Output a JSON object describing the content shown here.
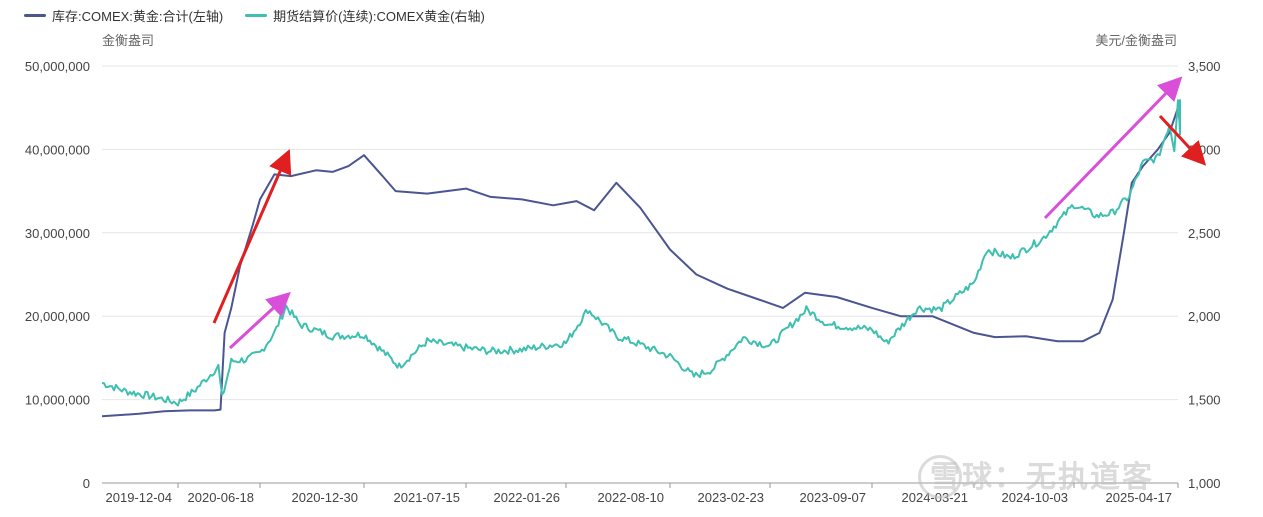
{
  "chart_data": {
    "type": "line",
    "legend": [
      {
        "name": "库存:COMEX:黄金:合计(左轴)",
        "color": "#4b5592"
      },
      {
        "name": "期货结算价(连续):COMEX黄金(右轴)",
        "color": "#3fbfb0"
      }
    ],
    "left_axis": {
      "unit": "金衡盎司",
      "ylim": [
        0,
        50000000
      ],
      "ticks": [
        "0",
        "10,000,000",
        "20,000,000",
        "30,000,000",
        "40,000,000",
        "50,000,000"
      ]
    },
    "right_axis": {
      "unit": "美元/金衡盎司",
      "ylim": [
        1000,
        3500
      ],
      "ticks": [
        "1,000",
        "1,500",
        "2,000",
        "2,500",
        "3,000",
        "3,500"
      ]
    },
    "x_ticks": [
      "2019-12-04",
      "2020-06-18",
      "2020-12-30",
      "2021-07-15",
      "2022-01-26",
      "2022-08-10",
      "2023-02-23",
      "2023-09-07",
      "2024-03-21",
      "2024-10-03",
      "2025-04-17"
    ],
    "grid": true,
    "series": [
      {
        "name": "库存:COMEX:黄金:合计(左轴)",
        "axis": "left",
        "x": [
          "2019-06-01",
          "2019-09-01",
          "2019-11-01",
          "2020-01-01",
          "2020-03-01",
          "2020-03-15",
          "2020-03-25",
          "2020-04-10",
          "2020-05-01",
          "2020-06-01",
          "2020-06-18",
          "2020-07-15",
          "2020-08-15",
          "2020-10-01",
          "2020-11-01",
          "2020-12-01",
          "2020-12-30",
          "2021-02-01",
          "2021-03-01",
          "2021-05-01",
          "2021-07-15",
          "2021-09-01",
          "2021-11-01",
          "2022-01-01",
          "2022-02-15",
          "2022-03-20",
          "2022-05-01",
          "2022-06-15",
          "2022-08-10",
          "2022-10-01",
          "2022-12-01",
          "2023-02-01",
          "2023-03-20",
          "2023-05-01",
          "2023-07-01",
          "2023-09-07",
          "2023-11-01",
          "2024-01-01",
          "2024-03-21",
          "2024-05-01",
          "2024-07-01",
          "2024-09-01",
          "2024-10-20",
          "2024-11-20",
          "2024-12-15",
          "2025-01-05",
          "2025-01-20",
          "2025-02-10",
          "2025-03-10",
          "2025-04-01",
          "2025-04-17",
          "2025-04-25"
        ],
        "values": [
          8000000,
          8300000,
          8600000,
          8700000,
          8700000,
          8800000,
          18000000,
          21000000,
          26000000,
          31000000,
          34000000,
          37000000,
          36800000,
          37500000,
          37300000,
          38000000,
          39300000,
          37000000,
          35000000,
          34700000,
          35300000,
          34300000,
          34000000,
          33300000,
          33800000,
          32700000,
          36000000,
          33000000,
          28000000,
          25000000,
          23300000,
          22000000,
          21000000,
          22800000,
          22300000,
          21000000,
          20000000,
          20000000,
          18000000,
          17500000,
          17600000,
          17000000,
          17000000,
          18000000,
          22000000,
          30000000,
          36000000,
          38000000,
          40000000,
          42000000,
          45000000,
          43000000
        ]
      },
      {
        "name": "期货结算价(连续):COMEX黄金(右轴)",
        "axis": "right",
        "x": [
          "2019-06-01",
          "2019-08-01",
          "2019-10-01",
          "2019-12-04",
          "2020-01-15",
          "2020-02-20",
          "2020-03-10",
          "2020-03-19",
          "2020-04-10",
          "2020-05-15",
          "2020-06-18",
          "2020-07-15",
          "2020-08-06",
          "2020-09-01",
          "2020-11-01",
          "2020-12-30",
          "2021-03-08",
          "2021-05-01",
          "2021-07-15",
          "2021-09-01",
          "2021-11-01",
          "2022-01-26",
          "2022-03-08",
          "2022-05-01",
          "2022-06-15",
          "2022-08-10",
          "2022-09-26",
          "2022-11-01",
          "2023-01-01",
          "2023-02-23",
          "2023-05-04",
          "2023-06-15",
          "2023-09-07",
          "2023-10-05",
          "2023-12-04",
          "2024-01-15",
          "2024-03-21",
          "2024-04-15",
          "2024-06-01",
          "2024-08-01",
          "2024-10-03",
          "2024-11-15",
          "2024-12-15",
          "2025-01-15",
          "2025-02-10",
          "2025-03-10",
          "2025-04-01",
          "2025-04-10",
          "2025-04-17",
          "2025-04-22",
          "2025-04-25"
        ],
        "values": [
          1600,
          1550,
          1520,
          1480,
          1560,
          1650,
          1700,
          1510,
          1730,
          1740,
          1780,
          1900,
          2060,
          1950,
          1880,
          1890,
          1700,
          1850,
          1810,
          1790,
          1800,
          1840,
          2040,
          1880,
          1830,
          1760,
          1640,
          1680,
          1870,
          1820,
          2040,
          1950,
          1920,
          1840,
          2050,
          2040,
          2200,
          2400,
          2350,
          2460,
          2670,
          2600,
          2620,
          2720,
          2920,
          2950,
          3150,
          3000,
          3310,
          3100,
          3300
        ]
      }
    ]
  },
  "watermark": "雪球：无执道客"
}
